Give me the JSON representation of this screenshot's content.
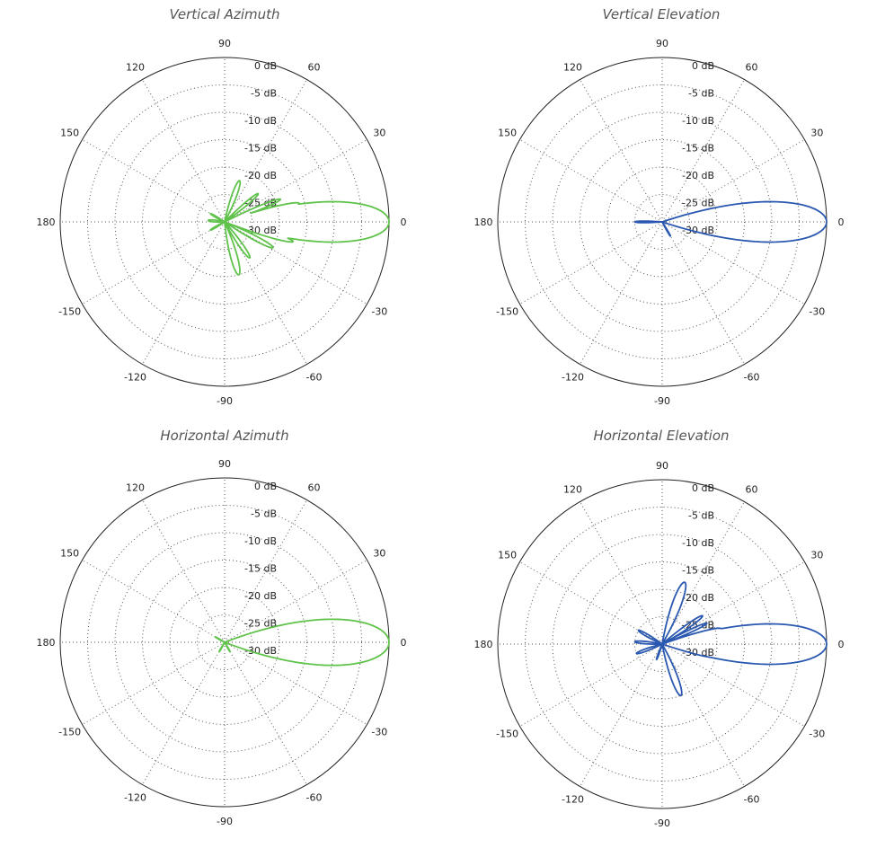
{
  "colors": {
    "green": "#5fc24a",
    "blue": "#2a58b0",
    "grid": "#555555",
    "frame": "#222222"
  },
  "chart_data": [
    {
      "type": "polar-line",
      "title": "Vertical Azimuth",
      "radial_labels": [
        "0 dB",
        "-5 dB",
        "-10 dB",
        "-15 dB",
        "-20 dB",
        "-25 dB",
        "-30 dB"
      ],
      "angle_labels": [
        "0",
        "30",
        "60",
        "90",
        "120",
        "150",
        "180",
        "-150",
        "-120",
        "-90",
        "-60",
        "-30"
      ],
      "rlim": [
        -30,
        0
      ],
      "grid": true,
      "color": "green",
      "lobes": [
        {
          "angle": 0,
          "gain": 0,
          "width": 7
        },
        {
          "angle": 8,
          "gain": -10,
          "width": 3
        },
        {
          "angle": 14,
          "gain": -16,
          "width": 3
        },
        {
          "angle": 22,
          "gain": -19,
          "width": 3
        },
        {
          "angle": 40,
          "gain": -22,
          "width": 4
        },
        {
          "angle": 70,
          "gain": -22,
          "width": 6
        },
        {
          "angle": -8,
          "gain": -12,
          "width": 3
        },
        {
          "angle": -16,
          "gain": -17,
          "width": 3
        },
        {
          "angle": -28,
          "gain": -20,
          "width": 4
        },
        {
          "angle": -55,
          "gain": -22,
          "width": 5
        },
        {
          "angle": -75,
          "gain": -20,
          "width": 6
        },
        {
          "angle": 175,
          "gain": -27,
          "width": 10
        },
        {
          "angle": 150,
          "gain": -27,
          "width": 6
        },
        {
          "angle": -150,
          "gain": -27,
          "width": 6
        }
      ]
    },
    {
      "type": "polar-line",
      "title": "Vertical Elevation",
      "radial_labels": [
        "0 dB",
        "-5 dB",
        "-10 dB",
        "-15 dB",
        "-20 dB",
        "-25 dB",
        "-30 dB"
      ],
      "angle_labels": [
        "0",
        "30",
        "60",
        "90",
        "120",
        "150",
        "180",
        "-150",
        "-120",
        "-90",
        "-60",
        "-30"
      ],
      "rlim": [
        -30,
        0
      ],
      "grid": true,
      "color": "blue",
      "lobes": [
        {
          "angle": 0,
          "gain": 0,
          "width": 7
        },
        {
          "angle": 180,
          "gain": -25,
          "width": 4
        },
        {
          "angle": -60,
          "gain": -27,
          "width": 4
        },
        {
          "angle": -15,
          "gain": -25,
          "width": 3
        }
      ]
    },
    {
      "type": "polar-line",
      "title": "Horizontal Azimuth",
      "radial_labels": [
        "0 dB",
        "-5 dB",
        "-10 dB",
        "-15 dB",
        "-20 dB",
        "-25 dB",
        "-30 dB"
      ],
      "angle_labels": [
        "0",
        "30",
        "60",
        "90",
        "120",
        "150",
        "180",
        "-150",
        "-120",
        "-90",
        "-60",
        "-30"
      ],
      "rlim": [
        -30,
        0
      ],
      "grid": true,
      "color": "green",
      "lobes": [
        {
          "angle": 0,
          "gain": 0,
          "width": 8
        },
        {
          "angle": 13,
          "gain": -21,
          "width": 3
        },
        {
          "angle": 150,
          "gain": -28,
          "width": 5
        },
        {
          "angle": -120,
          "gain": -28,
          "width": 5
        },
        {
          "angle": -60,
          "gain": -28,
          "width": 5
        }
      ]
    },
    {
      "type": "polar-line",
      "title": "Horizontal Elevation",
      "radial_labels": [
        "0 dB",
        "-5 dB",
        "-10 dB",
        "-15 dB",
        "-20 dB",
        "-25 dB",
        "-30 dB"
      ],
      "angle_labels": [
        "0",
        "30",
        "60",
        "90",
        "120",
        "150",
        "180",
        "-150",
        "-120",
        "-90",
        "-60",
        "-30"
      ],
      "rlim": [
        -30,
        0
      ],
      "grid": true,
      "color": "blue",
      "lobes": [
        {
          "angle": 0,
          "gain": 0,
          "width": 7
        },
        {
          "angle": 8,
          "gain": -13,
          "width": 3
        },
        {
          "angle": 15,
          "gain": -19,
          "width": 3
        },
        {
          "angle": 25,
          "gain": -21,
          "width": 3
        },
        {
          "angle": 35,
          "gain": -21,
          "width": 4
        },
        {
          "angle": 70,
          "gain": -18,
          "width": 6
        },
        {
          "angle": -8,
          "gain": -17,
          "width": 3
        },
        {
          "angle": -14,
          "gain": -20,
          "width": 3
        },
        {
          "angle": -70,
          "gain": -20,
          "width": 6
        },
        {
          "angle": 150,
          "gain": -25,
          "width": 6
        },
        {
          "angle": 175,
          "gain": -25,
          "width": 6
        },
        {
          "angle": -160,
          "gain": -25,
          "width": 6
        },
        {
          "angle": -110,
          "gain": -27,
          "width": 5
        }
      ]
    }
  ]
}
